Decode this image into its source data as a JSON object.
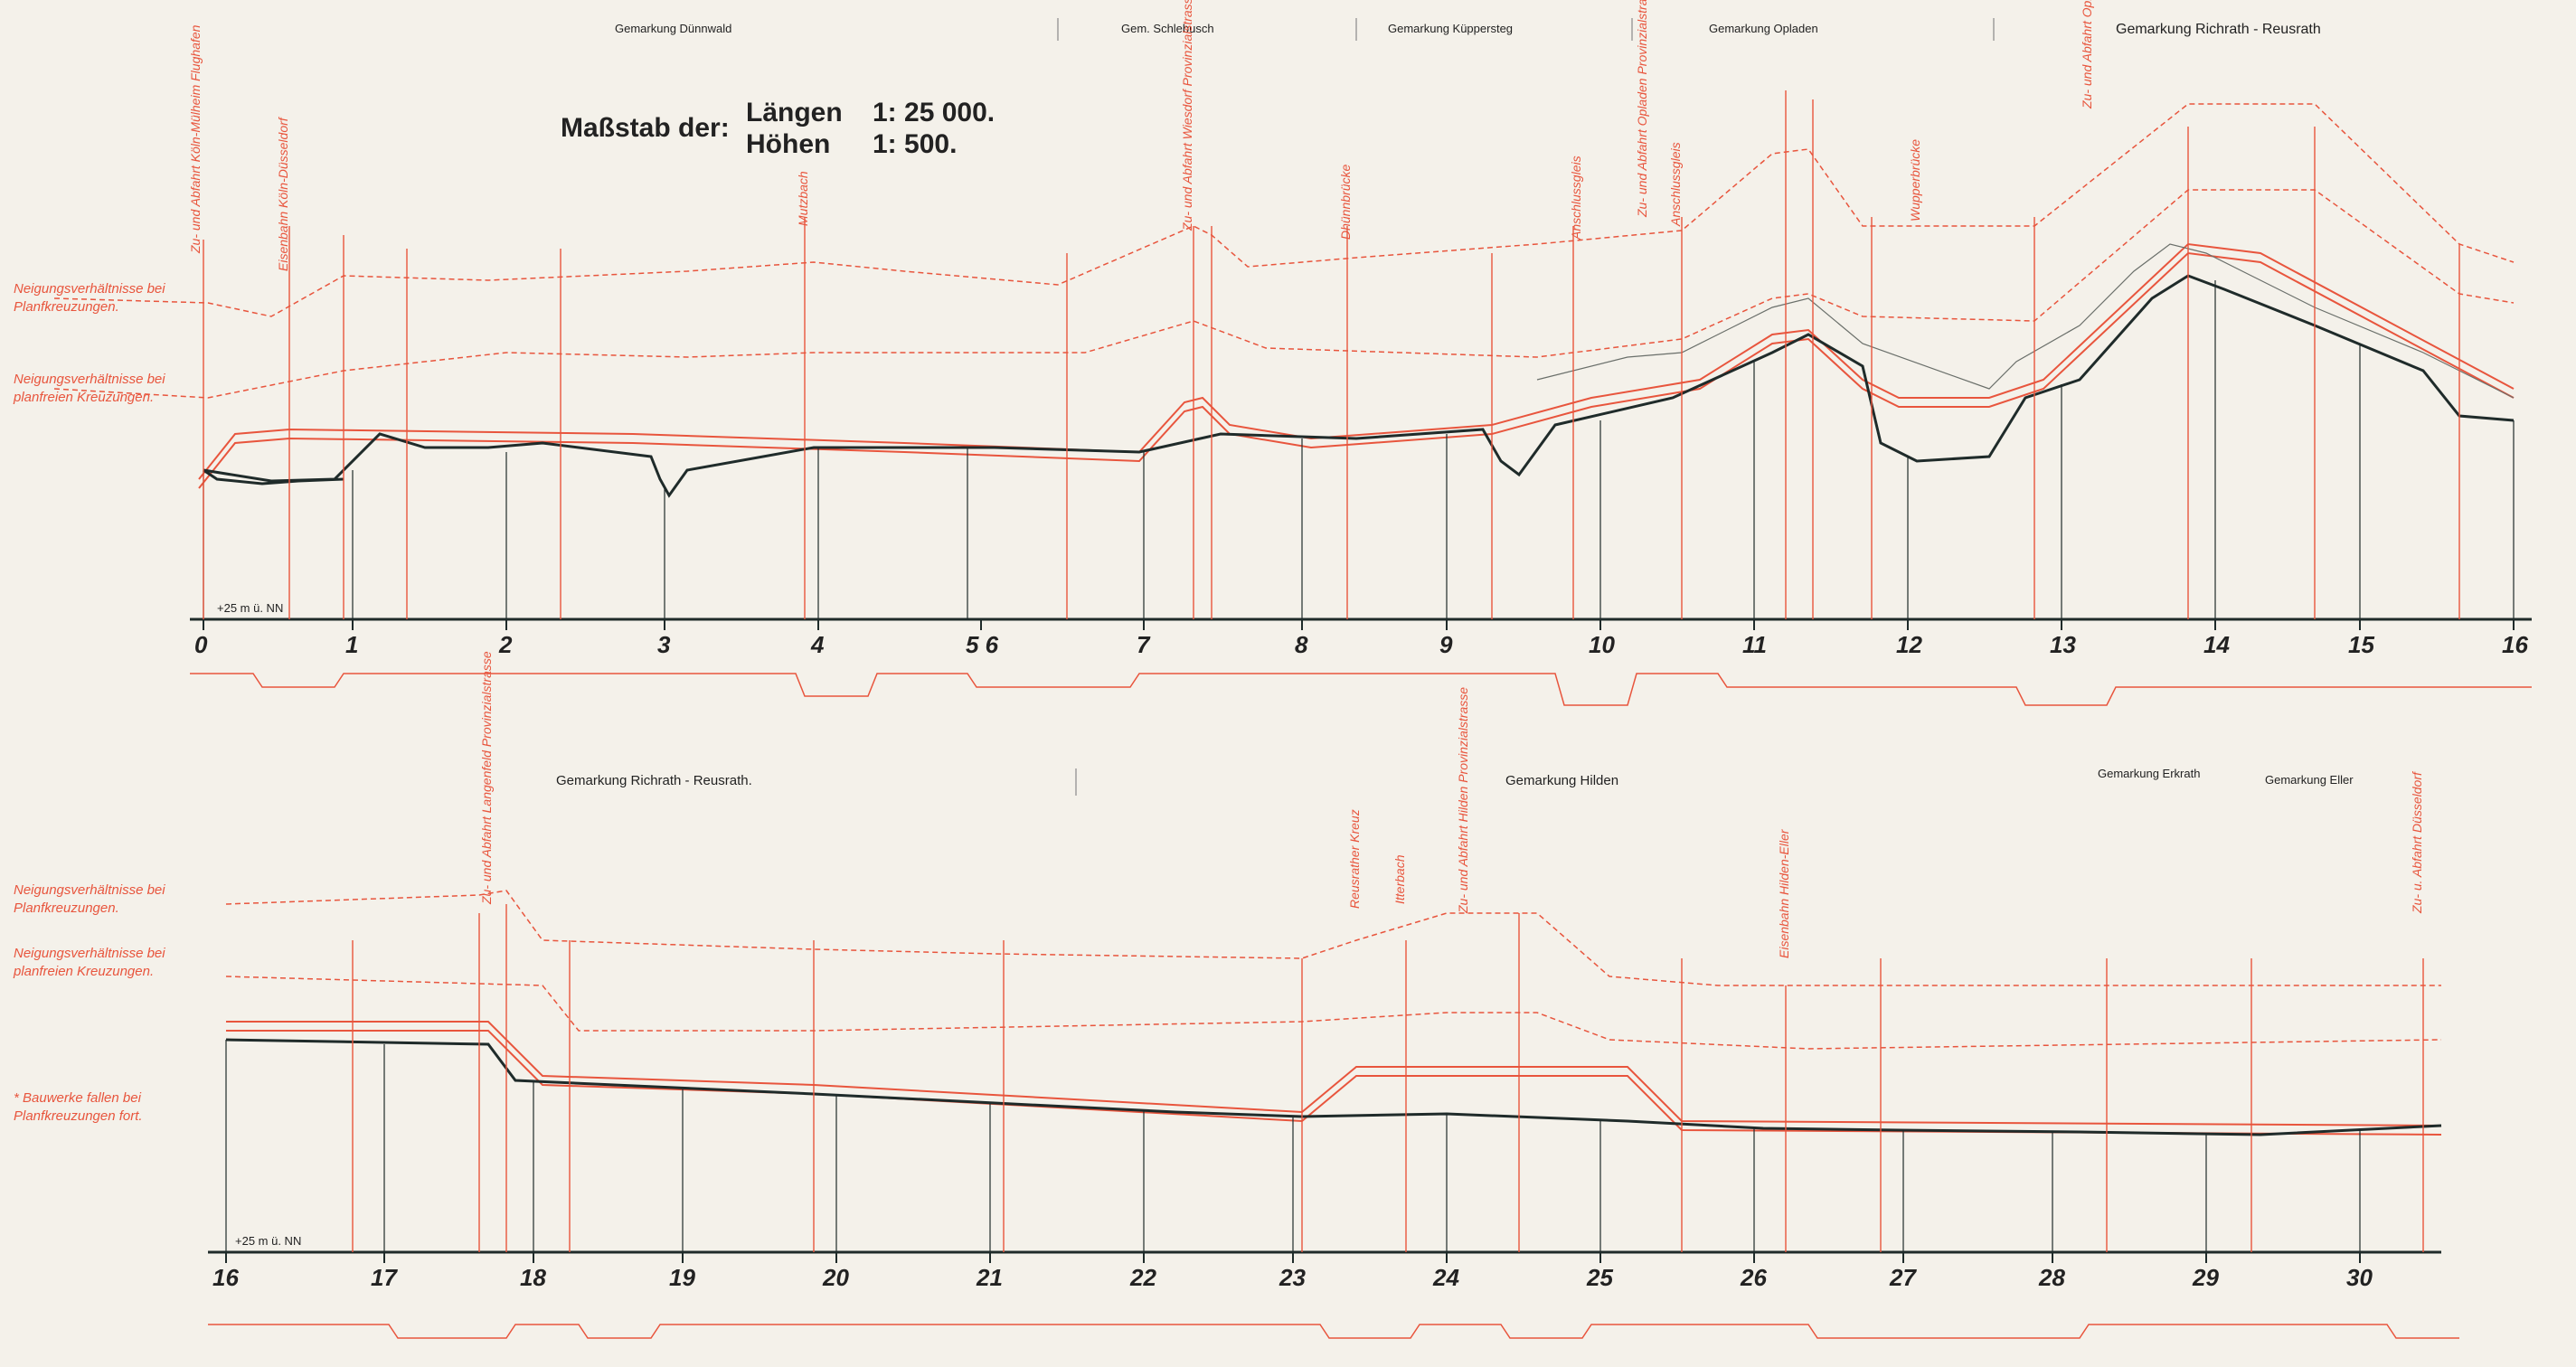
{
  "scale_note": {
    "prefix": "Maßstab der:",
    "length_label": "Längen",
    "length_value": "1: 25 000.",
    "height_label": "Höhen",
    "height_value": "1: 500."
  },
  "top_districts": [
    {
      "label": "Gemarkung  Dünnwald"
    },
    {
      "label": "Gem. Schlebusch"
    },
    {
      "label": "Gemarkung Küppersteg"
    },
    {
      "label": "Gemarkung Opladen"
    },
    {
      "label": "Gemarkung  Richrath - Reusrath"
    }
  ],
  "bottom_districts": [
    {
      "label": "Gemarkung  Richrath - Reusrath."
    },
    {
      "label": "Gemarkung  Hilden"
    },
    {
      "label": "Gemarkung Erkrath"
    },
    {
      "label": "Gemarkung Eller"
    }
  ],
  "legend_top": {
    "line1": "Neigungsverhältnisse bei Planfkreuzungen.",
    "line2": "Neigungsverhältnisse bei planfreien Kreuzungen."
  },
  "legend_bottom": {
    "line1": "Neigungsverhältnisse bei Planfkreuzungen.",
    "line2": "Neigungsverhältnisse bei planfreien Kreuzungen.",
    "line3": "* Bauwerke fallen bei Planfkreuzungen fort."
  },
  "datum": {
    "top": "+25 m ü. NN",
    "bottom": "+25 m ü. NN"
  },
  "km_top": [
    "0",
    "1",
    "2",
    "3",
    "4",
    "5 6",
    "7",
    "8",
    "9",
    "10",
    "11",
    "12",
    "13",
    "14",
    "15",
    "16"
  ],
  "km_bottom": [
    "16",
    "17",
    "18",
    "19",
    "20",
    "21",
    "22",
    "23",
    "24",
    "25",
    "26",
    "27",
    "28",
    "29",
    "30"
  ],
  "structures_top": [
    {
      "label": "Zu- und Abfahrt Köln-Mülheim Flughafen"
    },
    {
      "label": "Eisenbahn Köln-Düsseldorf"
    },
    {
      "label": "Mutzbach"
    },
    {
      "label": "Zu- und Abfahrt Wiesdorf Provinzialstrasse"
    },
    {
      "label": "Dhünnbrücke"
    },
    {
      "label": "Anschlussgleis"
    },
    {
      "label": "Anschlussgleis"
    },
    {
      "label": "Zu- und Abfahrt Opladen Provinzialstrasse"
    },
    {
      "label": "Wupperbrücke"
    },
    {
      "label": "Zu- und Abfahrt Opladen Provinzialstrasse"
    }
  ],
  "structures_bottom": [
    {
      "label": "Zu- und Abfahrt Langenfeld Provinzialstrasse"
    },
    {
      "label": "Reusrather Kreuz"
    },
    {
      "label": "Itterbach"
    },
    {
      "label": "Zu- und Abfahrt Hilden Provinzialstrasse"
    },
    {
      "label": "Eisenbahn Hilden-Eller"
    },
    {
      "label": "Zu- u. Abfahrt Düsseldorf"
    }
  ]
}
